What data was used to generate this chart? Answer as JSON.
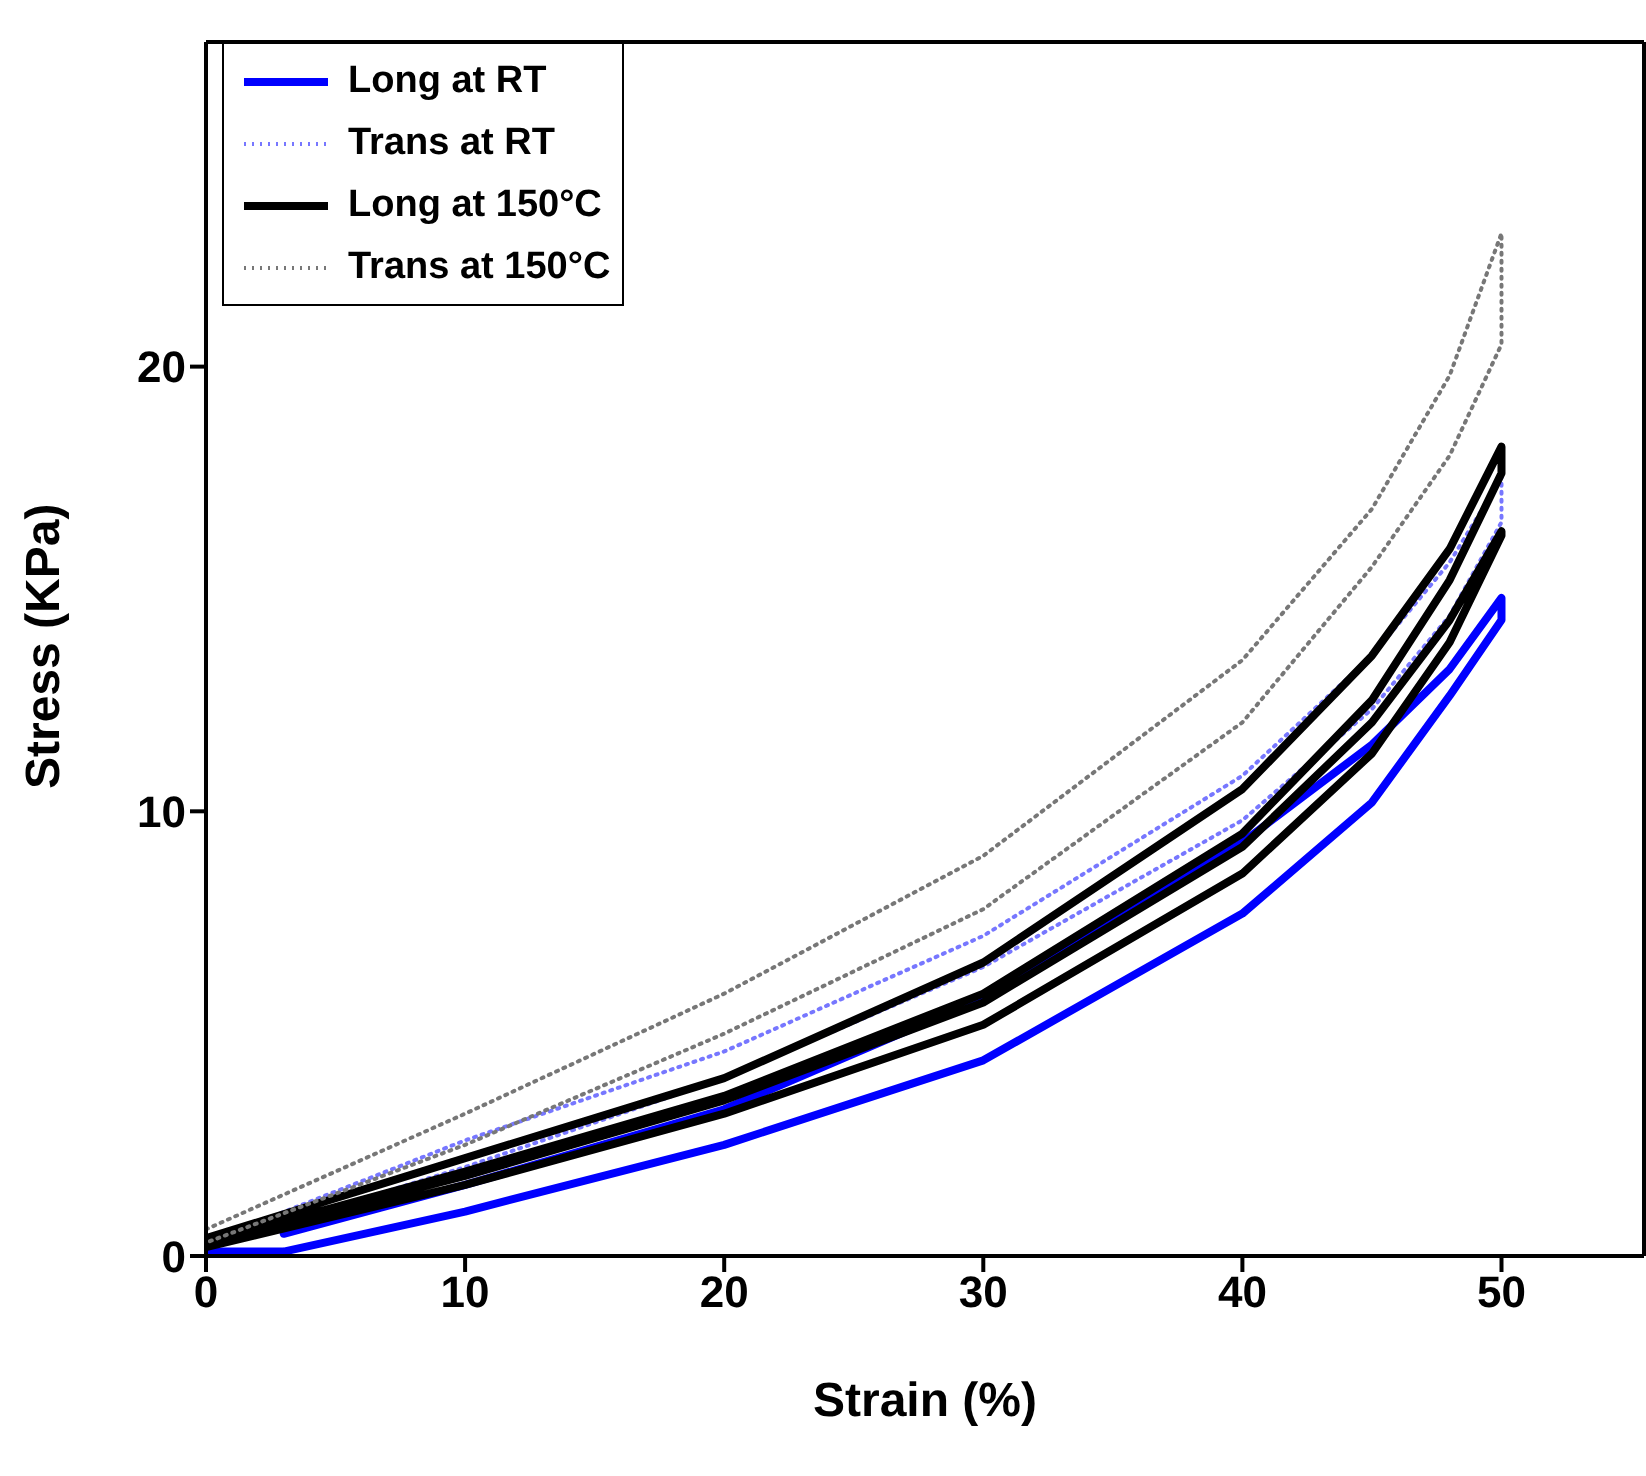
{
  "chart_data": {
    "type": "line",
    "xlabel": "Strain (%)",
    "ylabel": "Stress (KPa)",
    "xlim": [
      0,
      55.5
    ],
    "xticks": [
      0,
      10,
      20,
      30,
      40,
      50
    ],
    "ylim": [
      0,
      27.3
    ],
    "yticks": [
      0,
      10,
      20
    ],
    "grid": false,
    "legend": "top left",
    "marker": "none",
    "series": [
      {
        "name": "Long at RT",
        "color": "#0000ff",
        "line_style": "solid",
        "x": [
          3,
          10,
          20,
          30,
          40,
          45,
          48,
          50,
          50,
          48,
          45,
          40,
          30,
          20,
          10,
          3,
          0
        ],
        "values": [
          0.5,
          1.6,
          3.3,
          5.8,
          9.3,
          11.5,
          13.2,
          14.8,
          14.3,
          12.6,
          10.2,
          7.7,
          4.4,
          2.5,
          1.0,
          0.1,
          0.1
        ]
      },
      {
        "name": "Trans at RT",
        "color": "#7777ff",
        "line_style": "dotted",
        "x": [
          0,
          10,
          20,
          30,
          40,
          45,
          48,
          50,
          50,
          48,
          45,
          40,
          30,
          20,
          10,
          0
        ],
        "values": [
          0.3,
          2.6,
          4.6,
          7.2,
          10.8,
          13.5,
          15.6,
          17.5,
          16.5,
          14.4,
          12.3,
          9.8,
          6.5,
          4.0,
          2.0,
          0.2
        ]
      },
      {
        "name": "Long at 150°C",
        "color": "#000000",
        "line_style": "solid",
        "x": [
          0,
          10,
          20,
          30,
          40,
          45,
          48,
          50,
          50,
          48,
          45,
          40,
          30,
          20,
          10,
          0,
          10,
          20,
          30,
          40,
          45,
          48,
          50,
          50,
          48,
          45,
          40,
          30,
          20,
          10,
          0
        ],
        "values": [
          0.4,
          2.2,
          4.0,
          6.6,
          10.5,
          13.5,
          15.9,
          18.2,
          17.6,
          15.2,
          12.5,
          9.5,
          5.9,
          3.6,
          1.9,
          0.3,
          1.8,
          3.5,
          5.7,
          9.2,
          12.0,
          14.3,
          16.3,
          16.2,
          13.8,
          11.3,
          8.6,
          5.2,
          3.2,
          1.6,
          0.2
        ]
      },
      {
        "name": "Trans at 150°C",
        "color": "#777777",
        "line_style": "dotted",
        "x": [
          0,
          10,
          20,
          30,
          40,
          45,
          48,
          50,
          50,
          48,
          45,
          40,
          30,
          20,
          10,
          0
        ],
        "values": [
          0.6,
          3.2,
          5.9,
          9.0,
          13.4,
          16.8,
          19.8,
          23.0,
          20.5,
          18.0,
          15.5,
          12.0,
          7.8,
          5.0,
          2.5,
          0.3
        ]
      }
    ]
  }
}
